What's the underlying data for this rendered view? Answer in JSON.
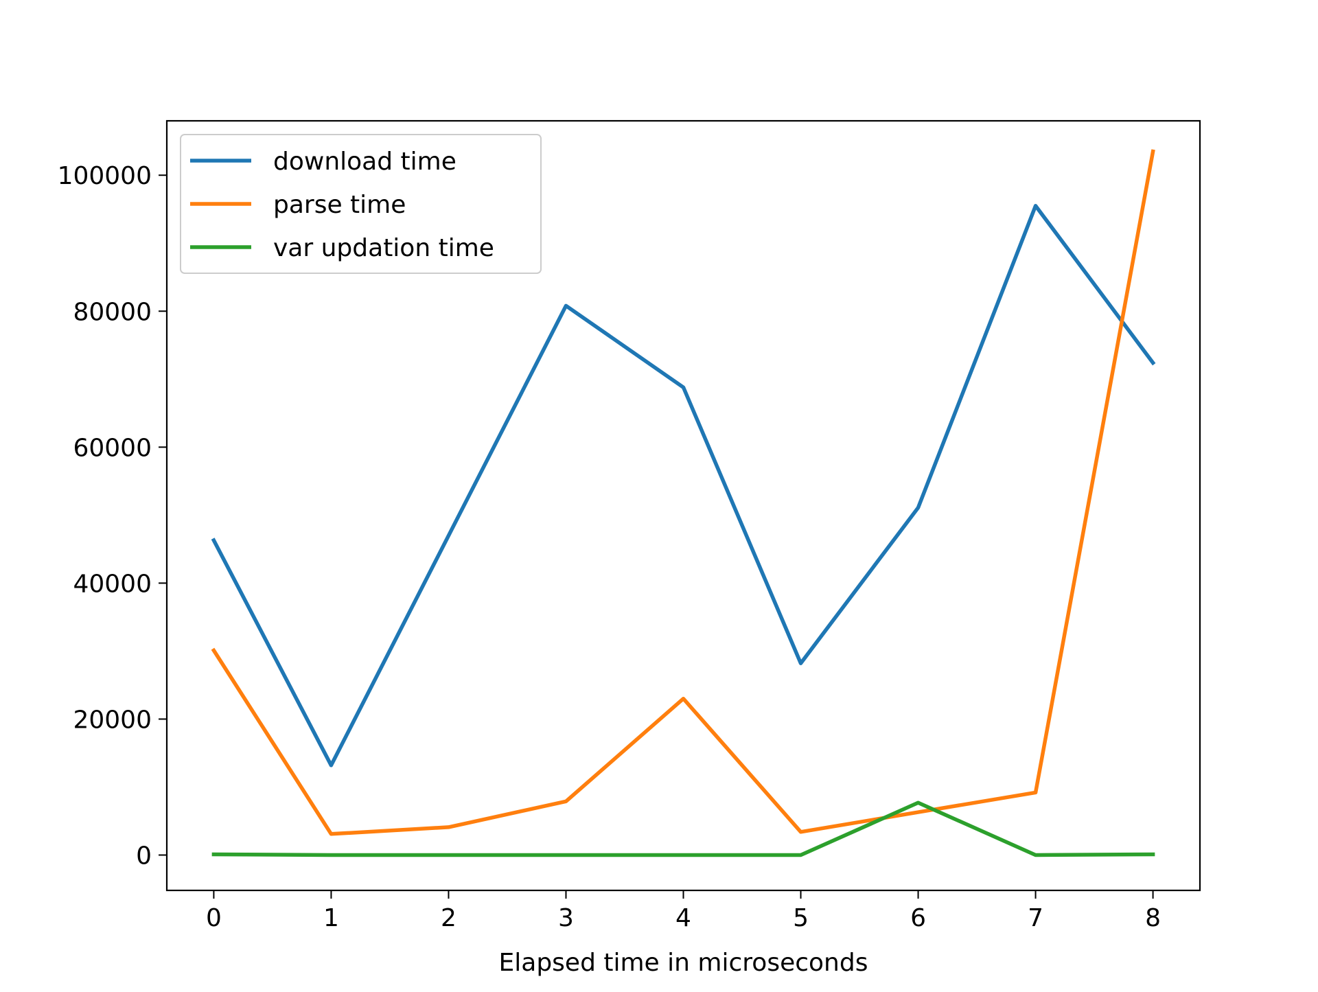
{
  "chart_data": {
    "type": "line",
    "title": "",
    "xlabel": "Elapsed time in microseconds",
    "ylabel": "",
    "x": [
      0,
      1,
      2,
      3,
      4,
      5,
      6,
      7,
      8
    ],
    "xlim": [
      -0.4,
      8.4
    ],
    "ylim": [
      -5200,
      108000
    ],
    "xticks": [
      0,
      1,
      2,
      3,
      4,
      5,
      6,
      7,
      8
    ],
    "yticks": [
      0,
      20000,
      40000,
      60000,
      80000,
      100000
    ],
    "grid": false,
    "legend": "top-left",
    "series": [
      {
        "name": "download time",
        "color": "#1f77b4",
        "values": [
          46300,
          13200,
          47000,
          80800,
          68800,
          28200,
          51100,
          95500,
          72400
        ]
      },
      {
        "name": "parse time",
        "color": "#ff7f0e",
        "values": [
          30100,
          3100,
          4100,
          7900,
          23000,
          3400,
          6300,
          9200,
          103500
        ]
      },
      {
        "name": "var updation time",
        "color": "#2ca02c",
        "values": [
          100,
          0,
          0,
          0,
          0,
          0,
          7700,
          0,
          100
        ]
      }
    ]
  }
}
